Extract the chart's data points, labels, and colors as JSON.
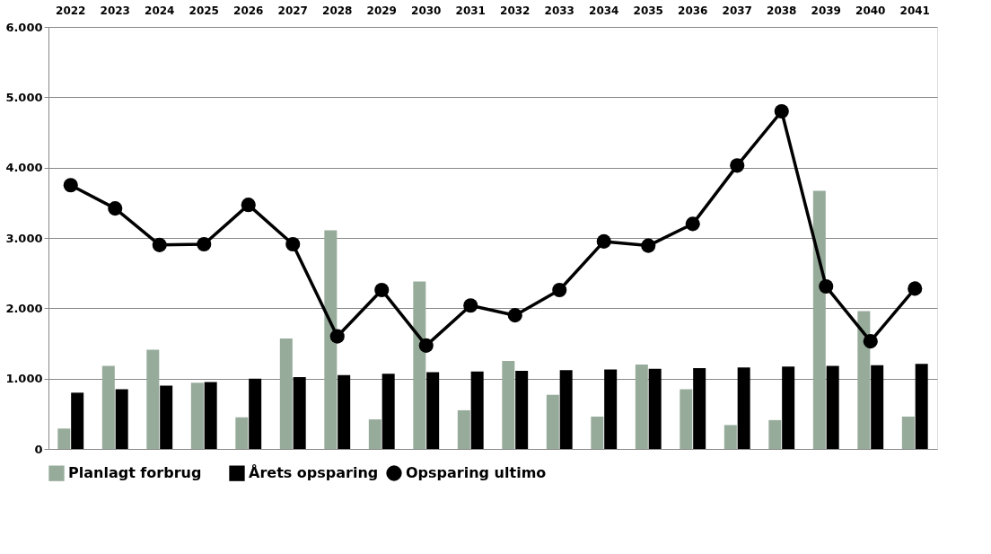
{
  "chart_data": {
    "type": "bar",
    "categories": [
      "2022",
      "2023",
      "2024",
      "2025",
      "2026",
      "2027",
      "2028",
      "2029",
      "2030",
      "2031",
      "2032",
      "2033",
      "2034",
      "2035",
      "2036",
      "2037",
      "2038",
      "2039",
      "2040",
      "2041"
    ],
    "series": [
      {
        "name": "Planlagt forbrug",
        "color": "#97ab9b",
        "values": [
          290,
          1180,
          1410,
          940,
          450,
          1570,
          3110,
          420,
          2380,
          550,
          1250,
          770,
          460,
          1200,
          850,
          340,
          410,
          3670,
          1960,
          460
        ]
      },
      {
        "name": "Årets opsparing",
        "color": "#000000",
        "values": [
          800,
          850,
          900,
          950,
          1000,
          1020,
          1050,
          1070,
          1090,
          1100,
          1110,
          1120,
          1130,
          1140,
          1150,
          1160,
          1170,
          1180,
          1190,
          1210
        ]
      },
      {
        "name": "Opsparing ultimo",
        "type": "line",
        "color": "#000000",
        "marker": "circle",
        "values": [
          3750,
          3420,
          2900,
          2910,
          3470,
          2910,
          1600,
          2260,
          1470,
          2040,
          1900,
          2260,
          2950,
          2890,
          3200,
          4030,
          4800,
          2310,
          1530,
          2280
        ]
      }
    ],
    "ylim": [
      0,
      6000
    ],
    "yticks": [
      0,
      {
        "value": 1000,
        "label": "1.000"
      },
      {
        "value": 2000,
        "label": "2.000"
      },
      {
        "value": 3000,
        "label": "3.000"
      },
      {
        "value": 4000,
        "label": "4.000"
      },
      {
        "value": 5000,
        "label": "5.000"
      },
      {
        "value": 6000,
        "label": "6.000"
      }
    ],
    "grid": "y",
    "legend": "bottom"
  }
}
